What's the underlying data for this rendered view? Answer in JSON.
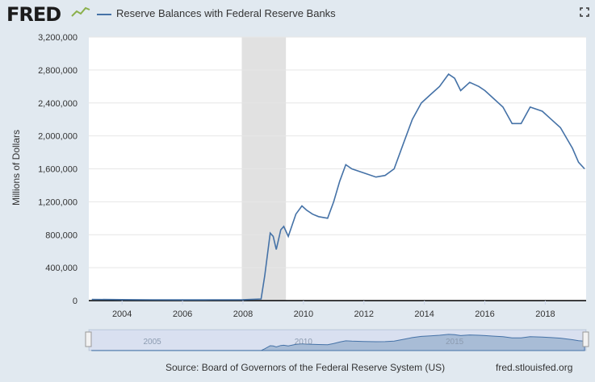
{
  "header": {
    "logo": "FRED",
    "legend": "Reserve Balances with Federal Reserve Banks"
  },
  "colors": {
    "series": "#4572a7",
    "recession": "#e1e1e1",
    "background": "#e1e9f0",
    "navigator_fill": "#a8bcd6"
  },
  "icons": {
    "logo_graph": "line-graph-icon",
    "fullscreen": "fullscreen-icon"
  },
  "footer": {
    "source": "Source: Board of Governors of the Federal Reserve System (US)",
    "site": "fred.stlouisfed.org"
  },
  "chart_data": {
    "type": "line",
    "title": "",
    "ylabel": "Millions of Dollars",
    "xlim": [
      2002.9,
      2019.35
    ],
    "ylim": [
      0,
      3200000
    ],
    "yticks": [
      0,
      400000,
      800000,
      1200000,
      1600000,
      2000000,
      2400000,
      2800000,
      3200000
    ],
    "ytick_labels": [
      "0",
      "400,000",
      "800,000",
      "1,200,000",
      "1,600,000",
      "2,000,000",
      "2,400,000",
      "2,800,000",
      "3,200,000"
    ],
    "xticks": [
      2004,
      2006,
      2008,
      2010,
      2012,
      2014,
      2016,
      2018
    ],
    "xtick_labels": [
      "2004",
      "2006",
      "2008",
      "2010",
      "2012",
      "2014",
      "2016",
      "2018"
    ],
    "grid": "horizontal",
    "legend_position": "top-left",
    "recessions": [
      [
        2007.96,
        2009.42
      ]
    ],
    "series": [
      {
        "name": "Reserve Balances with Federal Reserve Banks",
        "x": [
          2003.0,
          2004.0,
          2005.0,
          2006.0,
          2007.0,
          2008.0,
          2008.6,
          2008.72,
          2008.9,
          2009.0,
          2009.1,
          2009.25,
          2009.35,
          2009.5,
          2009.75,
          2009.95,
          2010.1,
          2010.3,
          2010.5,
          2010.8,
          2011.0,
          2011.2,
          2011.4,
          2011.6,
          2012.0,
          2012.4,
          2012.7,
          2013.0,
          2013.3,
          2013.6,
          2013.9,
          2014.2,
          2014.5,
          2014.8,
          2015.0,
          2015.2,
          2015.5,
          2015.8,
          2016.0,
          2016.3,
          2016.6,
          2016.9,
          2017.2,
          2017.5,
          2017.9,
          2018.2,
          2018.5,
          2018.9,
          2019.1,
          2019.3
        ],
        "values": [
          15000,
          12000,
          10000,
          9000,
          10000,
          11000,
          20000,
          300000,
          820000,
          780000,
          620000,
          860000,
          900000,
          780000,
          1050000,
          1150000,
          1100000,
          1050000,
          1020000,
          1000000,
          1200000,
          1450000,
          1650000,
          1600000,
          1550000,
          1500000,
          1520000,
          1600000,
          1900000,
          2200000,
          2400000,
          2500000,
          2600000,
          2750000,
          2700000,
          2550000,
          2650000,
          2600000,
          2550000,
          2450000,
          2350000,
          2150000,
          2150000,
          2350000,
          2300000,
          2200000,
          2100000,
          1850000,
          1680000,
          1600000
        ]
      }
    ]
  },
  "navigator": {
    "labels": [
      "2005",
      "2010",
      "2015"
    ]
  }
}
